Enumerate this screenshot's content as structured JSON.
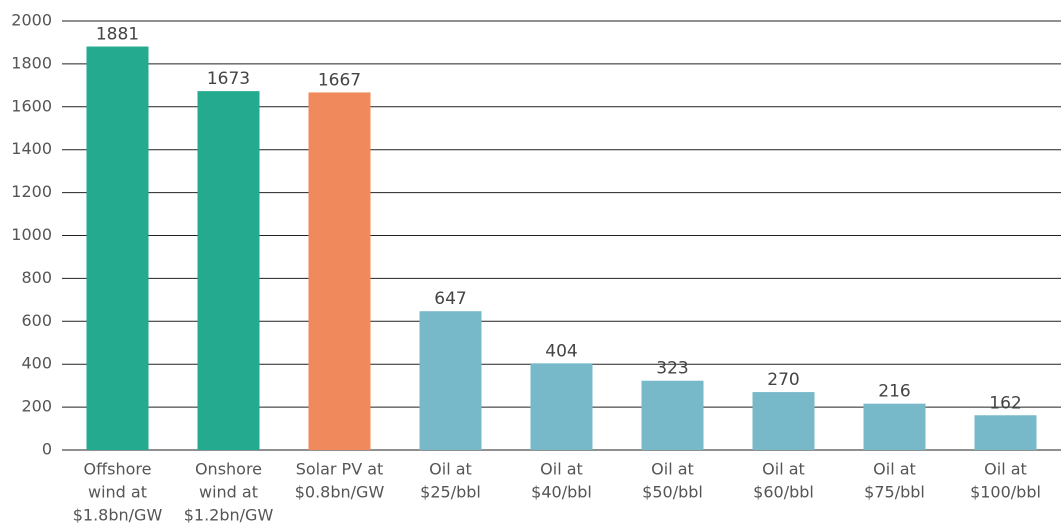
{
  "chart_data": {
    "type": "bar",
    "categories": [
      [
        "Offshore",
        "wind at",
        "$1.8bn/GW"
      ],
      [
        "Onshore",
        "wind at",
        "$1.2bn/GW"
      ],
      [
        "Solar PV at",
        "$0.8bn/GW"
      ],
      [
        "Oil at",
        "$25/bbl"
      ],
      [
        "Oil at",
        "$40/bbl"
      ],
      [
        "Oil at",
        "$50/bbl"
      ],
      [
        "Oil at",
        "$60/bbl"
      ],
      [
        "Oil at",
        "$75/bbl"
      ],
      [
        "Oil at",
        "$100/bbl"
      ]
    ],
    "values": [
      1881,
      1673,
      1667,
      647,
      404,
      323,
      270,
      216,
      162
    ],
    "colors": [
      "#23aa8f",
      "#23aa8f",
      "#f08a5d",
      "#78b9c9",
      "#78b9c9",
      "#78b9c9",
      "#78b9c9",
      "#78b9c9",
      "#78b9c9"
    ],
    "ylim": [
      0,
      2000
    ],
    "yticks": [
      0,
      200,
      400,
      600,
      800,
      1000,
      1200,
      1400,
      1600,
      1800,
      2000
    ],
    "grid": true
  }
}
